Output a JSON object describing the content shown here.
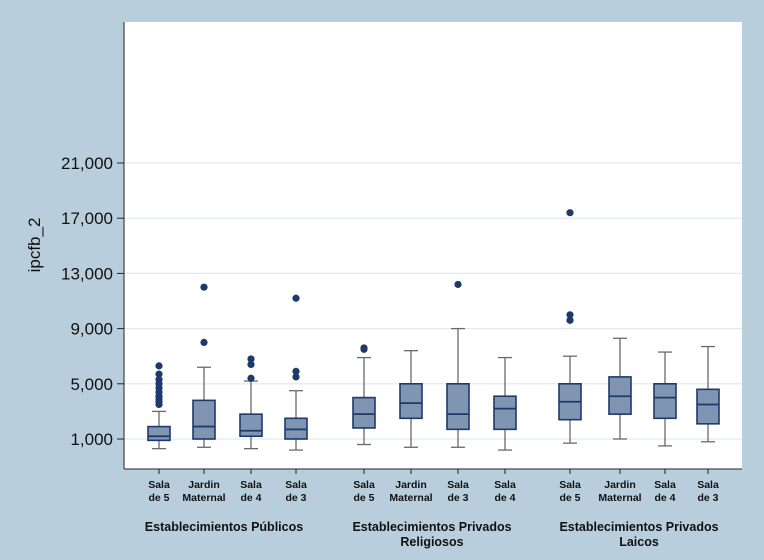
{
  "chart_data": {
    "type": "box",
    "ylabel": "ipcfb_2",
    "ylim": [
      0,
      24000
    ],
    "yticks": [
      1000,
      5000,
      9000,
      13000,
      17000,
      21000
    ],
    "ytick_labels": [
      "1,000",
      "5,000",
      "9,000",
      "13,000",
      "17,000",
      "21,000"
    ],
    "grid": true,
    "groups": [
      {
        "label": "Establecimientos Públicos",
        "boxes": [
          {
            "label": "Sala de 5",
            "whisker_low": 300,
            "q1": 900,
            "median": 1200,
            "q3": 1900,
            "whisker_high": 3000,
            "outliers": [
              3500,
              3700,
              3900,
              4100,
              4400,
              4700,
              5000,
              5300,
              5700,
              6300
            ]
          },
          {
            "label": "Jardin Maternal",
            "whisker_low": 400,
            "q1": 1000,
            "median": 1900,
            "q3": 3800,
            "whisker_high": 6200,
            "outliers": [
              8000,
              12000
            ]
          },
          {
            "label": "Sala de 4",
            "whisker_low": 300,
            "q1": 1200,
            "median": 1600,
            "q3": 2800,
            "whisker_high": 5200,
            "outliers": [
              5400,
              6400,
              6800
            ]
          },
          {
            "label": "Sala de 3",
            "whisker_low": 200,
            "q1": 1000,
            "median": 1700,
            "q3": 2500,
            "whisker_high": 4500,
            "outliers": [
              5500,
              5900,
              11200
            ]
          }
        ]
      },
      {
        "label": "Establecimientos Privados Religiosos",
        "boxes": [
          {
            "label": "Sala de 5",
            "whisker_low": 600,
            "q1": 1800,
            "median": 2800,
            "q3": 4000,
            "whisker_high": 6900,
            "outliers": [
              7500,
              7600
            ]
          },
          {
            "label": "Jardin Maternal",
            "whisker_low": 400,
            "q1": 2500,
            "median": 3600,
            "q3": 5000,
            "whisker_high": 7400,
            "outliers": []
          },
          {
            "label": "Sala de 3",
            "whisker_low": 400,
            "q1": 1700,
            "median": 2800,
            "q3": 5000,
            "whisker_high": 9000,
            "outliers": [
              12200
            ]
          },
          {
            "label": "Sala de 4",
            "whisker_low": 200,
            "q1": 1700,
            "median": 3200,
            "q3": 4100,
            "whisker_high": 6900,
            "outliers": []
          }
        ]
      },
      {
        "label": "Establecimientos Privados Laicos",
        "boxes": [
          {
            "label": "Sala de 5",
            "whisker_low": 700,
            "q1": 2400,
            "median": 3700,
            "q3": 5000,
            "whisker_high": 7000,
            "outliers": [
              9600,
              10000,
              17400
            ]
          },
          {
            "label": "Jardin Maternal",
            "whisker_low": 1000,
            "q1": 2800,
            "median": 4100,
            "q3": 5500,
            "whisker_high": 8300,
            "outliers": []
          },
          {
            "label": "Sala de 4",
            "whisker_low": 500,
            "q1": 2500,
            "median": 4000,
            "q3": 5000,
            "whisker_high": 7300,
            "outliers": []
          },
          {
            "label": "Sala de 3",
            "whisker_low": 800,
            "q1": 2100,
            "median": 3500,
            "q3": 4600,
            "whisker_high": 7700,
            "outliers": []
          }
        ]
      }
    ]
  },
  "colors": {
    "background": "#b9cedd",
    "plot_area": "#ffffff",
    "box_fill": "#7f95b2",
    "box_stroke": "#1d3a6b",
    "whisker": "#6a6a6a",
    "outlier": "#1d3a6b",
    "grid": "#e1e9f0"
  }
}
